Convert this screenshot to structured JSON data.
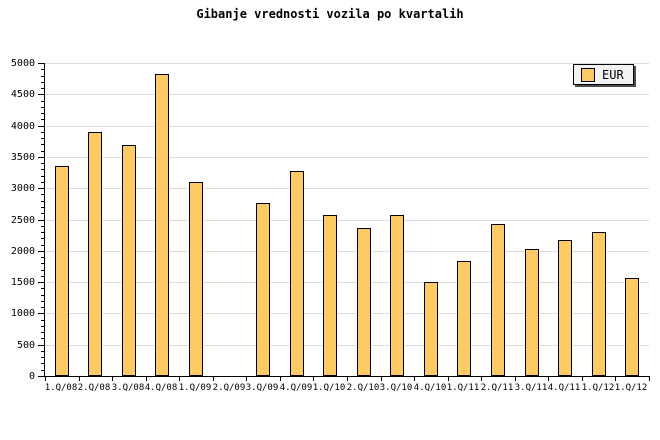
{
  "title": "Gibanje vrednosti vozila po kvartalih",
  "legend": {
    "label": "EUR"
  },
  "colors": {
    "bar_fill": "#FECB63",
    "bar_border": "#000000",
    "grid_line": "#DEDEDE",
    "axis": "#000000",
    "legend_bg": "#F2F2F2",
    "legend_shadow": "#4D4D4D",
    "background": "#FFFFFF"
  },
  "chart_data": {
    "type": "bar",
    "title": "Gibanje vrednosti vozila po kvartalih",
    "series": [
      {
        "name": "EUR",
        "values": [
          3350,
          3900,
          3690,
          4820,
          3100,
          0,
          2770,
          3280,
          2570,
          2360,
          2570,
          1500,
          1840,
          2430,
          2030,
          2180,
          2300,
          1560
        ]
      }
    ],
    "categories": [
      "1.Q/08",
      "2.Q/08",
      "3.Q/08",
      "4.Q/08",
      "1.Q/09",
      "2.Q/09",
      "3.Q/09",
      "4.Q/09",
      "1.Q/10",
      "2.Q/10",
      "3.Q/10",
      "4.Q/10",
      "1.Q/11",
      "2.Q/11",
      "3.Q/11",
      "4.Q/11",
      "1.Q/12",
      "1.Q/12"
    ],
    "xlabel": "",
    "ylabel": "",
    "ylim": [
      0,
      5000
    ],
    "y_ticks": [
      0,
      500,
      1000,
      1500,
      2000,
      2500,
      3000,
      3500,
      4000,
      4500,
      5000
    ],
    "y_minor_tick_step": 100,
    "grid": "horizontal",
    "legend_position": "top-right",
    "note_missing_bars": [
      "2.Q/09"
    ]
  }
}
